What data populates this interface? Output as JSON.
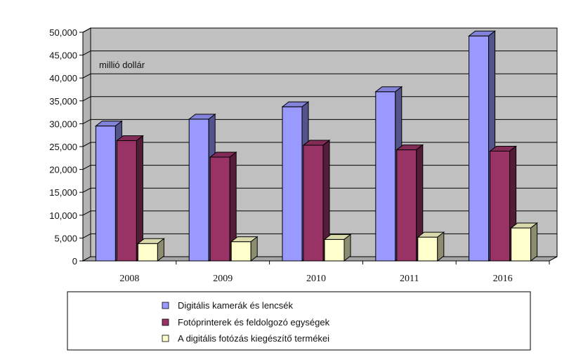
{
  "chart_data": {
    "type": "bar",
    "three_d": true,
    "unit_annotation": "millió dollár",
    "categories": [
      "2008",
      "2009",
      "2010",
      "2011",
      "2016"
    ],
    "series": [
      {
        "name": "Digitális kamerák és lencsék",
        "color": "#9999ff",
        "values": [
          29500,
          31000,
          33700,
          37000,
          49200
        ]
      },
      {
        "name": "Fotóprinterek és feldolgozó egységek",
        "color": "#993366",
        "values": [
          26300,
          22700,
          25300,
          24300,
          24000
        ]
      },
      {
        "name": "A digitális fotózás kiegészítő termékei",
        "color": "#ffffcc",
        "values": [
          3800,
          4200,
          4700,
          5200,
          7200
        ]
      }
    ],
    "ylim": [
      0,
      50000
    ],
    "yticks": [
      "0",
      "5,000",
      "10,000",
      "15,000",
      "20,000",
      "25,000",
      "30,000",
      "35,000",
      "40,000",
      "45,000",
      "50,000"
    ],
    "grid": true,
    "legend_position": "bottom"
  }
}
